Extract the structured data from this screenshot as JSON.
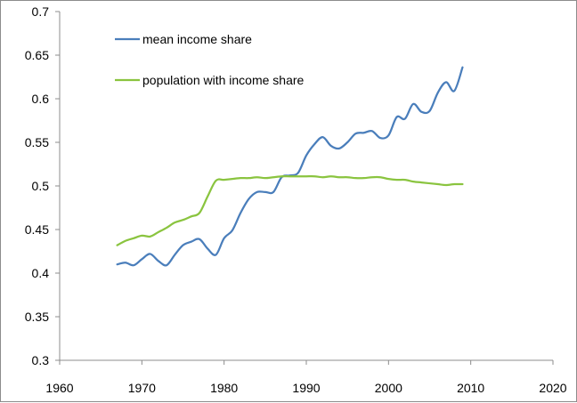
{
  "chart_data": {
    "type": "line",
    "title": "",
    "xlabel": "",
    "ylabel": "",
    "xlim": [
      1960,
      2020
    ],
    "ylim": [
      0.3,
      0.7
    ],
    "x_ticks": [
      1960,
      1970,
      1980,
      1990,
      2000,
      2010,
      2020
    ],
    "y_ticks": [
      0.3,
      0.35,
      0.4,
      0.45,
      0.5,
      0.55,
      0.6,
      0.65,
      0.7
    ],
    "x_tick_labels": [
      "1960",
      "1970",
      "1980",
      "1990",
      "2000",
      "2010",
      "2020"
    ],
    "y_tick_labels": [
      "0.3",
      "0.35",
      "0.4",
      "0.45",
      "0.5",
      "0.55",
      "0.6",
      "0.65",
      "0.7"
    ],
    "grid": false,
    "legend_position": "top-left",
    "series": [
      {
        "name": "mean income share",
        "color": "#4a7ebb",
        "x": [
          1967,
          1968,
          1969,
          1970,
          1971,
          1972,
          1973,
          1974,
          1975,
          1976,
          1977,
          1978,
          1979,
          1980,
          1981,
          1982,
          1983,
          1984,
          1985,
          1986,
          1987,
          1988,
          1989,
          1990,
          1991,
          1992,
          1993,
          1994,
          1995,
          1996,
          1997,
          1998,
          1999,
          2000,
          2001,
          2002,
          2003,
          2004,
          2005,
          2006,
          2007,
          2008,
          2009
        ],
        "values": [
          0.41,
          0.412,
          0.409,
          0.416,
          0.422,
          0.414,
          0.409,
          0.421,
          0.432,
          0.436,
          0.439,
          0.428,
          0.421,
          0.44,
          0.449,
          0.469,
          0.485,
          0.493,
          0.493,
          0.493,
          0.51,
          0.512,
          0.515,
          0.535,
          0.548,
          0.556,
          0.546,
          0.543,
          0.55,
          0.56,
          0.561,
          0.563,
          0.555,
          0.558,
          0.579,
          0.577,
          0.594,
          0.585,
          0.586,
          0.607,
          0.619,
          0.609,
          0.636
        ]
      },
      {
        "name": "population with income share",
        "color": "#8ac43f",
        "x": [
          1967,
          1968,
          1969,
          1970,
          1971,
          1972,
          1973,
          1974,
          1975,
          1976,
          1977,
          1978,
          1979,
          1980,
          1981,
          1982,
          1983,
          1984,
          1985,
          1986,
          1987,
          1988,
          1989,
          1990,
          1991,
          1992,
          1993,
          1994,
          1995,
          1996,
          1997,
          1998,
          1999,
          2000,
          2001,
          2002,
          2003,
          2004,
          2005,
          2006,
          2007,
          2008,
          2009
        ],
        "values": [
          0.432,
          0.437,
          0.44,
          0.443,
          0.442,
          0.447,
          0.452,
          0.458,
          0.461,
          0.465,
          0.469,
          0.488,
          0.506,
          0.507,
          0.508,
          0.509,
          0.509,
          0.51,
          0.509,
          0.51,
          0.511,
          0.511,
          0.511,
          0.511,
          0.511,
          0.51,
          0.511,
          0.51,
          0.51,
          0.509,
          0.509,
          0.51,
          0.51,
          0.508,
          0.507,
          0.507,
          0.505,
          0.504,
          0.503,
          0.502,
          0.501,
          0.502,
          0.502
        ]
      }
    ]
  }
}
